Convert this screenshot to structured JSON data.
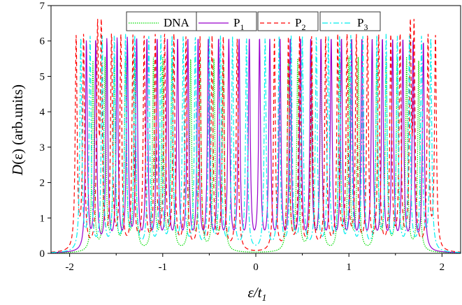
{
  "chart_data": {
    "type": "line",
    "title": "",
    "xlabel": "ε/t",
    "xlabel_sub": "1",
    "ylabel_italic": "D",
    "ylabel_rest": "(ε) (arb.units)",
    "xlim": [
      -2.2,
      2.2
    ],
    "ylim": [
      0,
      7
    ],
    "xticks": [
      "-2",
      "-1",
      "0",
      "1",
      "2"
    ],
    "xtick_values": [
      -2,
      -1,
      0,
      1,
      2
    ],
    "yticks": [
      "0",
      "1",
      "2",
      "3",
      "4",
      "5",
      "6",
      "7"
    ],
    "ytick_values": [
      0,
      1,
      2,
      3,
      4,
      5,
      6,
      7
    ],
    "legend_placement": "top-center",
    "lorentzian_width": 0.012,
    "series": [
      {
        "name": "DNA",
        "sub": "",
        "color": "#00dd00",
        "dash": "1.5,1.5",
        "peak_height": 5.4,
        "peaks": [
          -1.75,
          -1.62,
          -1.52,
          -1.4,
          -1.3,
          -1.1,
          -1.0,
          -0.9,
          -0.7,
          -0.6,
          -0.45,
          -0.35,
          0.35,
          0.45,
          0.6,
          0.7,
          0.9,
          1.0,
          1.1,
          1.3,
          1.4,
          1.52,
          1.62,
          1.75
        ]
      },
      {
        "name": "P",
        "sub": "1",
        "color": "#9900cc",
        "dash": "",
        "peak_height": 5.9,
        "peaks": [
          -1.82,
          -1.72,
          -1.6,
          -1.49,
          -1.38,
          -1.28,
          -1.17,
          -1.06,
          -0.95,
          -0.84,
          -0.73,
          -0.62,
          -0.51,
          -0.4,
          -0.29,
          -0.18,
          -0.07,
          0.04,
          0.15,
          0.26,
          0.37,
          0.48,
          0.59,
          0.7,
          0.81,
          0.92,
          1.03,
          1.14,
          1.25,
          1.36,
          1.47,
          1.58,
          1.69,
          1.8
        ]
      },
      {
        "name": "P",
        "sub": "2",
        "color": "#ff0000",
        "dash": "6,4",
        "peak_height": 6.0,
        "peaks": [
          -1.93,
          -1.85,
          -1.7,
          -1.66,
          -1.55,
          -1.45,
          -1.32,
          -1.2,
          -1.08,
          -0.98,
          -0.88,
          -0.75,
          -0.6,
          -0.47,
          -0.35,
          -0.2,
          0.2,
          0.35,
          0.47,
          0.6,
          0.75,
          0.88,
          0.98,
          1.08,
          1.2,
          1.32,
          1.45,
          1.55,
          1.66,
          1.7,
          1.85,
          1.93
        ]
      },
      {
        "name": "P",
        "sub": "3",
        "color": "#00eeee",
        "dash": "8,3,2,3",
        "peak_height": 6.0,
        "peaks": [
          -1.88,
          -1.78,
          -1.65,
          -1.52,
          -1.4,
          -1.3,
          -1.15,
          -1.02,
          -0.9,
          -0.78,
          -0.65,
          -0.5,
          -0.38,
          -0.25,
          -0.1,
          0.1,
          0.25,
          0.38,
          0.5,
          0.65,
          0.78,
          0.9,
          1.02,
          1.15,
          1.3,
          1.4,
          1.52,
          1.65,
          1.78,
          1.88
        ]
      }
    ]
  }
}
